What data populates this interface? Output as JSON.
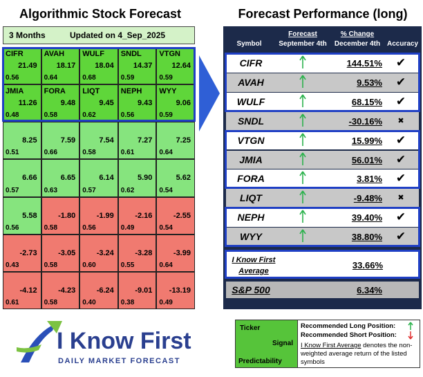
{
  "left": {
    "title": "Algorithmic Stock Forecast",
    "period": "3 Months",
    "updated": "Updated on 4_Sep_2025",
    "grid": [
      [
        {
          "ticker": "CIFR",
          "signal": "21.49",
          "predictability": "0.56"
        },
        {
          "ticker": "AVAH",
          "signal": "18.17",
          "predictability": "0.64"
        },
        {
          "ticker": "WULF",
          "signal": "18.04",
          "predictability": "0.68"
        },
        {
          "ticker": "SNDL",
          "signal": "14.37",
          "predictability": "0.59"
        },
        {
          "ticker": "VTGN",
          "signal": "12.64",
          "predictability": "0.59"
        }
      ],
      [
        {
          "ticker": "JMIA",
          "signal": "11.26",
          "predictability": "0.48"
        },
        {
          "ticker": "FORA",
          "signal": "9.48",
          "predictability": "0.58"
        },
        {
          "ticker": "LIQT",
          "signal": "9.45",
          "predictability": "0.62"
        },
        {
          "ticker": "NEPH",
          "signal": "9.43",
          "predictability": "0.56"
        },
        {
          "ticker": "WYY",
          "signal": "9.06",
          "predictability": "0.59"
        }
      ],
      [
        {
          "signal": "8.25",
          "predictability": "0.51"
        },
        {
          "signal": "7.59",
          "predictability": "0.66"
        },
        {
          "signal": "7.54",
          "predictability": "0.58"
        },
        {
          "signal": "7.27",
          "predictability": "0.61"
        },
        {
          "signal": "7.25",
          "predictability": "0.64"
        }
      ],
      [
        {
          "signal": "6.66",
          "predictability": "0.57"
        },
        {
          "signal": "6.65",
          "predictability": "0.63"
        },
        {
          "signal": "6.14",
          "predictability": "0.57"
        },
        {
          "signal": "5.90",
          "predictability": "0.62"
        },
        {
          "signal": "5.62",
          "predictability": "0.54"
        }
      ],
      [
        {
          "signal": "5.58",
          "predictability": "0.56"
        },
        {
          "signal": "-1.80",
          "predictability": "0.58"
        },
        {
          "signal": "-1.99",
          "predictability": "0.56"
        },
        {
          "signal": "-2.16",
          "predictability": "0.49"
        },
        {
          "signal": "-2.55",
          "predictability": "0.54"
        }
      ],
      [
        {
          "signal": "-2.73",
          "predictability": "0.43"
        },
        {
          "signal": "-3.05",
          "predictability": "0.58"
        },
        {
          "signal": "-3.24",
          "predictability": "0.60"
        },
        {
          "signal": "-3.28",
          "predictability": "0.55"
        },
        {
          "signal": "-3.99",
          "predictability": "0.64"
        }
      ],
      [
        {
          "signal": "-4.12",
          "predictability": "0.61"
        },
        {
          "signal": "-4.23",
          "predictability": "0.58"
        },
        {
          "signal": "-6.24",
          "predictability": "0.40"
        },
        {
          "signal": "-9.01",
          "predictability": "0.38"
        },
        {
          "signal": "-13.19",
          "predictability": "0.49"
        }
      ]
    ]
  },
  "right": {
    "title": "Forecast Performance (long)",
    "columns": {
      "symbol": "Symbol",
      "forecast": "Forecast",
      "forecast_date": "September 4th",
      "change": "% Change",
      "change_date": "December 4th",
      "accuracy": "Accuracy"
    },
    "rows": [
      {
        "symbol": "CIFR",
        "change": "144.51%",
        "accuracy": "✔"
      },
      {
        "symbol": "AVAH",
        "change": "9.53%",
        "accuracy": "✔"
      },
      {
        "symbol": "WULF",
        "change": "68.15%",
        "accuracy": "✔"
      },
      {
        "symbol": "SNDL",
        "change": "-30.16%",
        "accuracy": "✖"
      },
      {
        "symbol": "VTGN",
        "change": "15.99%",
        "accuracy": "✔"
      },
      {
        "symbol": "JMIA",
        "change": "56.01%",
        "accuracy": "✔"
      },
      {
        "symbol": "FORA",
        "change": "3.81%",
        "accuracy": "✔"
      },
      {
        "symbol": "LIQT",
        "change": "-9.48%",
        "accuracy": "✖"
      },
      {
        "symbol": "NEPH",
        "change": "39.40%",
        "accuracy": "✔"
      },
      {
        "symbol": "WYY",
        "change": "38.80%",
        "accuracy": "✔"
      }
    ],
    "average": {
      "label": "I Know First Average",
      "change": "33.66%"
    },
    "benchmark": {
      "label": "S&P 500",
      "change": "6.34%"
    }
  },
  "logo": {
    "name": "I Know First",
    "tagline": "DAILY MARKET FORECAST"
  },
  "legend": {
    "ticker": "Ticker",
    "signal": "Signal",
    "predictability": "Predictability",
    "long": "Recommended Long Position:",
    "short": "Recommended Short Position:",
    "average_term": "I Know First Average",
    "average_note": " denotes the non-weighted average return of the listed symbols"
  }
}
